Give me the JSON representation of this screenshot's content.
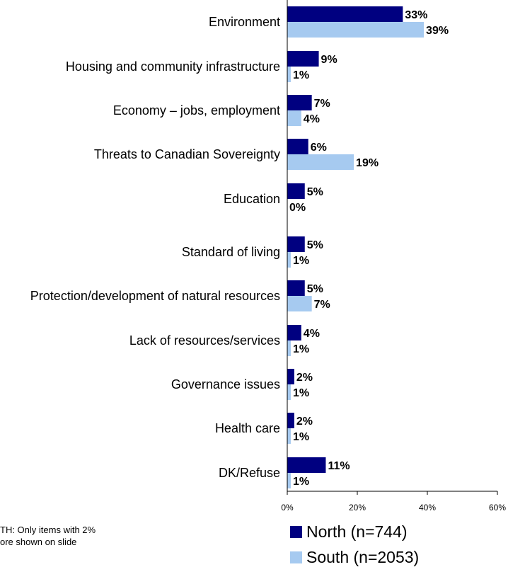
{
  "chart_data": {
    "type": "bar",
    "orientation": "horizontal",
    "categories": [
      "Environment",
      "Housing and community infrastructure",
      "Economy – jobs, employment",
      "Threats to Canadian Sovereignty",
      "Education",
      "Standard of living",
      "Protection/development of natural resources",
      "Lack of resources/services",
      "Governance issues",
      "Health care",
      "DK/Refuse"
    ],
    "series": [
      {
        "name": "North (n=744)",
        "color": "#000080",
        "values": [
          33,
          9,
          7,
          6,
          5,
          5,
          5,
          4,
          2,
          2,
          11
        ],
        "labels": [
          "33%",
          "9%",
          "7%",
          "6%",
          "5%",
          "5%",
          "5%",
          "4%",
          "2%",
          "2%",
          "11%"
        ]
      },
      {
        "name": "South (n=2053)",
        "color": "#a6caf0",
        "values": [
          39,
          1,
          4,
          19,
          0,
          1,
          7,
          1,
          1,
          1,
          1
        ],
        "labels": [
          "39%",
          "1%",
          "4%",
          "19%",
          "0%",
          "1%",
          "7%",
          "1%",
          "1%",
          "1%",
          "1%"
        ]
      }
    ],
    "xlim": [
      0,
      60
    ],
    "xticks": [
      "0%",
      "20%",
      "40%",
      "60%"
    ],
    "legend_position": "bottom",
    "grid": false
  },
  "note": {
    "line1": "TH: Only items with 2%",
    "line2": "ore shown on slide"
  }
}
